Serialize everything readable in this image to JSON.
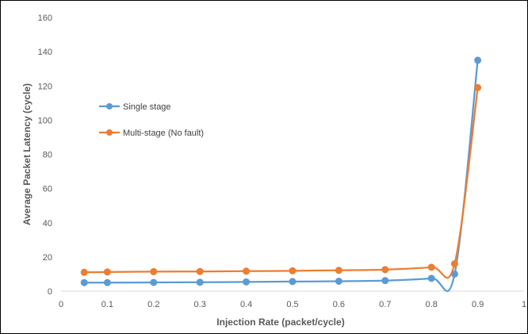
{
  "chart_data": {
    "type": "line",
    "title": "",
    "xlabel": "Injection Rate (packet/cycle)",
    "ylabel": "Average Packet Latency (cycle)",
    "xlim": [
      0,
      1
    ],
    "ylim": [
      0,
      160
    ],
    "x_ticks": [
      "0",
      "0.1",
      "0.2",
      "0.3",
      "0.4",
      "0.5",
      "0.6",
      "0.7",
      "0.8",
      "0.9",
      "1"
    ],
    "y_ticks": [
      "0",
      "20",
      "40",
      "60",
      "80",
      "100",
      "120",
      "140",
      "160"
    ],
    "grid": false,
    "legend_position": "left",
    "smoothed": true,
    "series": [
      {
        "name": "Single stage",
        "color": "#5b9bd5",
        "x": [
          0.05,
          0.1,
          0.2,
          0.3,
          0.4,
          0.5,
          0.6,
          0.7,
          0.8,
          0.85,
          0.9
        ],
        "y": [
          5,
          5,
          5.1,
          5.2,
          5.4,
          5.6,
          5.8,
          6.2,
          7.5,
          10,
          135
        ]
      },
      {
        "name": "Multi-stage (No fault)",
        "color": "#ed7d31",
        "x": [
          0.05,
          0.1,
          0.2,
          0.3,
          0.4,
          0.5,
          0.6,
          0.7,
          0.8,
          0.85,
          0.9
        ],
        "y": [
          11,
          11.2,
          11.4,
          11.5,
          11.7,
          11.9,
          12.2,
          12.6,
          14,
          16,
          119
        ]
      }
    ]
  }
}
